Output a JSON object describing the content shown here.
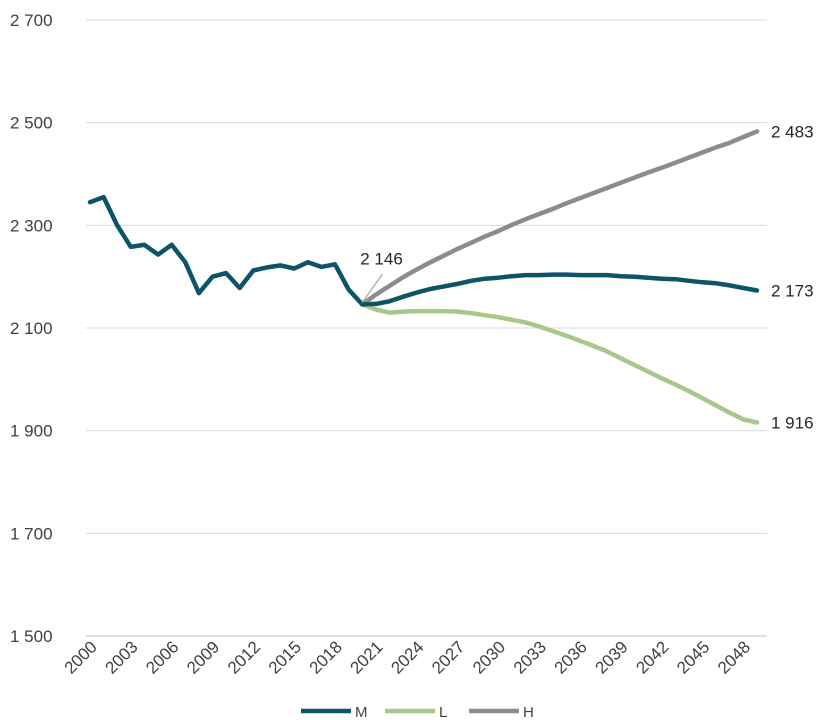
{
  "chart_data": {
    "type": "line",
    "title": "",
    "xlabel": "",
    "ylabel": "",
    "ylim": [
      1500,
      2700
    ],
    "yticks": [
      1500,
      1700,
      1900,
      2100,
      2300,
      2500,
      2700
    ],
    "ytick_labels": [
      "1 500",
      "1 700",
      "1 900",
      "2 100",
      "2 300",
      "2 500",
      "2 700"
    ],
    "xlim": [
      2000,
      2049
    ],
    "xtick_labels": [
      "2000",
      "2003",
      "2006",
      "2009",
      "2012",
      "2015",
      "2018",
      "2021",
      "2024",
      "2027",
      "2030",
      "2033",
      "2036",
      "2039",
      "2042",
      "2045",
      "2048"
    ],
    "grid": true,
    "legend_position": "bottom",
    "series": [
      {
        "name": "M",
        "color": "#0e5468",
        "x": [
          2000,
          2001,
          2002,
          2003,
          2004,
          2005,
          2006,
          2007,
          2008,
          2009,
          2010,
          2011,
          2012,
          2013,
          2014,
          2015,
          2016,
          2017,
          2018,
          2019,
          2020,
          2021,
          2022,
          2023,
          2024,
          2025,
          2026,
          2027,
          2028,
          2029,
          2030,
          2031,
          2032,
          2033,
          2034,
          2035,
          2036,
          2037,
          2038,
          2039,
          2040,
          2041,
          2042,
          2043,
          2044,
          2045,
          2046,
          2047,
          2048,
          2049
        ],
        "values": [
          2345,
          2355,
          2300,
          2258,
          2262,
          2243,
          2262,
          2228,
          2168,
          2200,
          2207,
          2178,
          2212,
          2218,
          2222,
          2216,
          2228,
          2219,
          2224,
          2175,
          2146,
          2147,
          2152,
          2161,
          2169,
          2176,
          2181,
          2186,
          2192,
          2196,
          2198,
          2201,
          2203,
          2203,
          2204,
          2204,
          2203,
          2203,
          2203,
          2201,
          2200,
          2198,
          2196,
          2195,
          2192,
          2189,
          2187,
          2183,
          2178,
          2173
        ]
      },
      {
        "name": "L",
        "color": "#a6c98a",
        "x": [
          2020,
          2021,
          2022,
          2023,
          2024,
          2025,
          2026,
          2027,
          2028,
          2029,
          2030,
          2031,
          2032,
          2033,
          2034,
          2035,
          2036,
          2037,
          2038,
          2039,
          2040,
          2041,
          2042,
          2043,
          2044,
          2045,
          2046,
          2047,
          2048,
          2049
        ],
        "values": [
          2146,
          2136,
          2130,
          2132,
          2133,
          2133,
          2133,
          2132,
          2129,
          2125,
          2121,
          2116,
          2111,
          2103,
          2094,
          2085,
          2075,
          2065,
          2054,
          2041,
          2028,
          2015,
          2002,
          1990,
          1977,
          1963,
          1949,
          1935,
          1922,
          1916
        ]
      },
      {
        "name": "H",
        "color": "#8c8c8c",
        "x": [
          2020,
          2021,
          2022,
          2023,
          2024,
          2025,
          2026,
          2027,
          2028,
          2029,
          2030,
          2031,
          2032,
          2033,
          2034,
          2035,
          2036,
          2037,
          2038,
          2039,
          2040,
          2041,
          2042,
          2043,
          2044,
          2045,
          2046,
          2047,
          2048,
          2049
        ],
        "values": [
          2146,
          2165,
          2182,
          2199,
          2214,
          2228,
          2241,
          2254,
          2266,
          2278,
          2289,
          2301,
          2312,
          2322,
          2332,
          2343,
          2353,
          2363,
          2373,
          2383,
          2393,
          2403,
          2412,
          2422,
          2432,
          2442,
          2452,
          2461,
          2472,
          2483
        ]
      }
    ],
    "annotations": [
      {
        "text": "2 146",
        "x": 2020,
        "y": 2146
      },
      {
        "text": "2 483",
        "series": "H"
      },
      {
        "text": "2 173",
        "series": "M"
      },
      {
        "text": "1 916",
        "series": "L"
      }
    ]
  }
}
